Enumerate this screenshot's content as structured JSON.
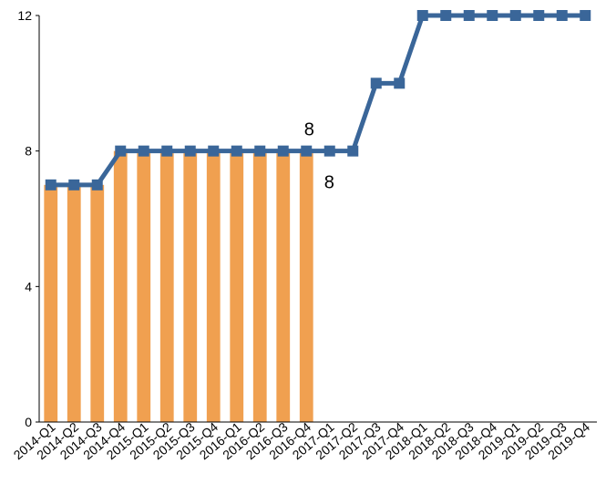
{
  "chart_data": {
    "type": "bar",
    "categories": [
      "2014-Q1",
      "2014-Q2",
      "2014-Q3",
      "2014-Q4",
      "2015-Q1",
      "2015-Q2",
      "2015-Q3",
      "2015-Q4",
      "2016-Q1",
      "2016-Q2",
      "2016-Q3",
      "2016-Q4",
      "2017-Q1",
      "2017-Q2",
      "2017-Q3",
      "2017-Q4",
      "2018-Q1",
      "2018-Q2",
      "2018-Q3",
      "2018-Q4",
      "2019-Q1",
      "2019-Q2",
      "2019-Q3",
      "2019-Q4"
    ],
    "series": [
      {
        "type": "bar",
        "color": "#F0A050",
        "values": [
          7,
          7,
          7,
          8,
          8,
          8,
          8,
          8,
          8,
          8,
          8,
          8,
          null,
          null,
          null,
          null,
          null,
          null,
          null,
          null,
          null,
          null,
          null,
          null
        ],
        "data_labels": [
          {
            "index": 11,
            "text": "8"
          }
        ]
      },
      {
        "type": "line",
        "color": "#3A6699",
        "marker": "square",
        "values": [
          7,
          7,
          7,
          8,
          8,
          8,
          8,
          8,
          8,
          8,
          8,
          8,
          8,
          8,
          10,
          10,
          12,
          12,
          12,
          12,
          12,
          12,
          12,
          12
        ],
        "data_labels": [
          {
            "index": 11,
            "text": "8"
          }
        ]
      }
    ],
    "title": "",
    "xlabel": "",
    "ylabel": "",
    "ylim": [
      0,
      12
    ],
    "yticks": [
      "0",
      "4",
      "8",
      "12"
    ],
    "grid": false,
    "legend": "none"
  }
}
